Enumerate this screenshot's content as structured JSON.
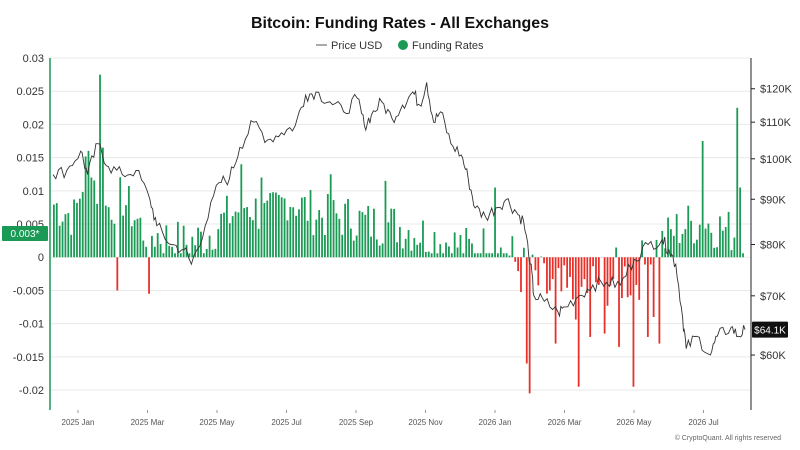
{
  "chart_data": {
    "type": "bar",
    "title": "Bitcoin: Funding Rates - All Exchanges",
    "legend": {
      "placement": "top-center",
      "items": [
        "Price USD",
        "Funding Rates"
      ]
    },
    "colors": {
      "positive_bar": "#1a9a54",
      "negative_bar": "#e8302a",
      "price_line": "#333333",
      "latest_tag": "#1a9a54",
      "price_tag": "#111111"
    },
    "x_ticks": [
      "2025 Jan",
      "2025 Mar",
      "2025 May",
      "2025 Jul",
      "2025 Sep",
      "2025 Nov",
      "2026 Jan",
      "2026 Mar",
      "2026 May",
      "2026 Jul"
    ],
    "y_left": {
      "ticks": [
        "0.03",
        "0.025",
        "0.02",
        "0.015",
        "0.01",
        "0.005",
        "0",
        "-0.005",
        "-0.01",
        "-0.015",
        "-0.02"
      ],
      "ylim": [
        -0.023,
        0.03
      ]
    },
    "y_right": {
      "ticks": [
        "$120K",
        "$110K",
        "$100K",
        "$90K",
        "$80K",
        "$70K",
        "$60K"
      ],
      "scale": "log",
      "ylim": [
        52000,
        130000
      ]
    },
    "latest_funding_label": "0.003*",
    "latest_price_label": "$64.1K",
    "grid": true,
    "funding_rates": {
      "x_range": [
        "2024-12-01",
        "2026-08-31"
      ],
      "keypoints": [
        [
          0,
          0.008
        ],
        [
          0.03,
          0.006
        ],
        [
          0.05,
          0.015
        ],
        [
          0.07,
          0.007
        ],
        [
          0.1,
          0.009
        ],
        [
          0.13,
          0.004
        ],
        [
          0.16,
          0.003
        ],
        [
          0.19,
          0.002
        ],
        [
          0.22,
          0.003
        ],
        [
          0.25,
          0.006
        ],
        [
          0.28,
          0.008
        ],
        [
          0.31,
          0.006
        ],
        [
          0.34,
          0.009
        ],
        [
          0.37,
          0.007
        ],
        [
          0.4,
          0.006
        ],
        [
          0.43,
          0.006
        ],
        [
          0.46,
          0.005
        ],
        [
          0.49,
          0.005
        ],
        [
          0.52,
          0.004
        ],
        [
          0.55,
          0.003
        ],
        [
          0.58,
          0.002
        ],
        [
          0.61,
          0.001
        ],
        [
          0.63,
          0.002
        ],
        [
          0.66,
          0.0
        ],
        [
          0.69,
          -0.003
        ],
        [
          0.72,
          -0.005
        ],
        [
          0.75,
          -0.006
        ],
        [
          0.78,
          -0.004
        ],
        [
          0.81,
          -0.003
        ],
        [
          0.84,
          -0.003
        ],
        [
          0.86,
          -0.001
        ],
        [
          0.88,
          0.002
        ],
        [
          0.9,
          0.004
        ],
        [
          0.92,
          0.005
        ],
        [
          0.95,
          0.005
        ],
        [
          0.98,
          0.004
        ],
        [
          1,
          0.003
        ]
      ],
      "spikes": [
        [
          0.065,
          0.0275
        ],
        [
          0.07,
          0.0165
        ],
        [
          0.09,
          -0.005
        ],
        [
          0.14,
          -0.0055
        ],
        [
          0.055,
          0.012
        ],
        [
          0.27,
          0.014
        ],
        [
          0.3,
          0.012
        ],
        [
          0.4,
          0.0125
        ],
        [
          0.48,
          0.0115
        ],
        [
          0.64,
          0.0105
        ],
        [
          0.685,
          -0.016
        ],
        [
          0.69,
          -0.0205
        ],
        [
          0.73,
          -0.013
        ],
        [
          0.76,
          -0.0195
        ],
        [
          0.78,
          -0.012
        ],
        [
          0.8,
          -0.0115
        ],
        [
          0.82,
          -0.0135
        ],
        [
          0.84,
          -0.0195
        ],
        [
          0.86,
          -0.012
        ],
        [
          0.87,
          -0.009
        ],
        [
          0.88,
          -0.013
        ],
        [
          0.94,
          0.0175
        ],
        [
          0.99,
          0.0225
        ],
        [
          0.995,
          0.0105
        ]
      ]
    },
    "price_usd": {
      "x_range": [
        "2024-12-01",
        "2026-08-31"
      ],
      "points": [
        [
          0,
          96000
        ],
        [
          0.02,
          97000
        ],
        [
          0.04,
          102000
        ],
        [
          0.05,
          96000
        ],
        [
          0.065,
          104000
        ],
        [
          0.08,
          98000
        ],
        [
          0.1,
          96000
        ],
        [
          0.12,
          97000
        ],
        [
          0.14,
          90000
        ],
        [
          0.15,
          84000
        ],
        [
          0.17,
          80000
        ],
        [
          0.19,
          79000
        ],
        [
          0.2,
          76000
        ],
        [
          0.22,
          84000
        ],
        [
          0.24,
          94000
        ],
        [
          0.255,
          95000
        ],
        [
          0.27,
          103000
        ],
        [
          0.29,
          110000
        ],
        [
          0.31,
          105000
        ],
        [
          0.33,
          107000
        ],
        [
          0.35,
          109000
        ],
        [
          0.365,
          118000
        ],
        [
          0.38,
          119000
        ],
        [
          0.4,
          116000
        ],
        [
          0.42,
          113000
        ],
        [
          0.44,
          117000
        ],
        [
          0.45,
          109000
        ],
        [
          0.46,
          112000
        ],
        [
          0.475,
          116000
        ],
        [
          0.49,
          111000
        ],
        [
          0.505,
          115000
        ],
        [
          0.52,
          119000
        ],
        [
          0.53,
          115000
        ],
        [
          0.54,
          122000
        ],
        [
          0.55,
          110000
        ],
        [
          0.56,
          113000
        ],
        [
          0.575,
          104000
        ],
        [
          0.59,
          101000
        ],
        [
          0.6,
          95000
        ],
        [
          0.61,
          88000
        ],
        [
          0.625,
          86000
        ],
        [
          0.64,
          88000
        ],
        [
          0.655,
          90000
        ],
        [
          0.67,
          87000
        ],
        [
          0.68,
          85000
        ],
        [
          0.69,
          76000
        ],
        [
          0.695,
          70000
        ],
        [
          0.71,
          69000
        ],
        [
          0.73,
          67000
        ],
        [
          0.74,
          68000
        ],
        [
          0.76,
          70000
        ],
        [
          0.78,
          72000
        ],
        [
          0.8,
          72500
        ],
        [
          0.82,
          72000
        ],
        [
          0.84,
          77000
        ],
        [
          0.86,
          80000
        ],
        [
          0.88,
          81000
        ],
        [
          0.89,
          79000
        ],
        [
          0.9,
          76000
        ],
        [
          0.91,
          66000
        ],
        [
          0.915,
          61000
        ],
        [
          0.93,
          63000
        ],
        [
          0.95,
          60000
        ],
        [
          0.96,
          63000
        ],
        [
          0.98,
          64500
        ],
        [
          0.99,
          63000
        ],
        [
          1,
          64100
        ]
      ]
    }
  },
  "credit": "© CryptoQuant. All rights reserved"
}
